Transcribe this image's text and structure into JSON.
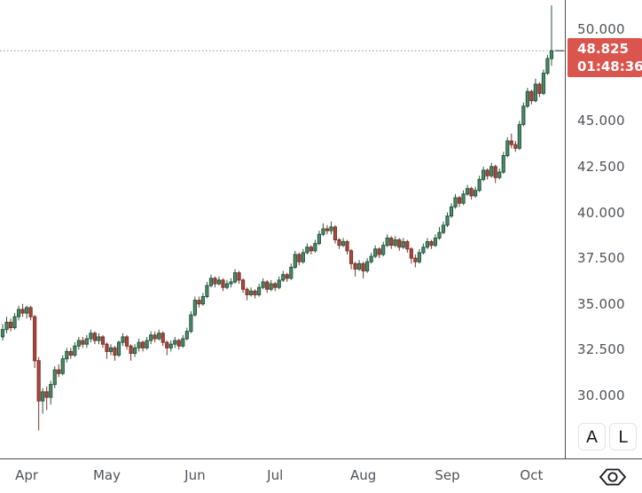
{
  "chart_data": {
    "type": "candlestick",
    "title": "",
    "grid": "off",
    "legend": "none",
    "x_axis": {
      "tick_labels": [
        "Apr",
        "May",
        "Jun",
        "Jul",
        "Aug",
        "Sep",
        "Oct"
      ],
      "tick_indices": [
        6,
        26,
        48,
        68,
        90,
        111,
        132
      ]
    },
    "y_axis": {
      "tick_labels": [
        "50.000",
        "45.000",
        "42.500",
        "40.000",
        "37.500",
        "35.000",
        "32.500",
        "30.000"
      ],
      "tick_values": [
        50,
        45,
        42.5,
        40,
        37.5,
        35,
        32.5,
        30
      ],
      "visible_range": [
        26.6,
        51.6
      ]
    },
    "current_price": 48.825,
    "countdown": "01:48:36",
    "candles": [
      [
        33.2,
        33.9,
        33.0,
        33.6
      ],
      [
        33.6,
        34.3,
        33.4,
        34.0
      ],
      [
        34.0,
        34.2,
        33.5,
        33.7
      ],
      [
        33.7,
        34.5,
        33.6,
        34.3
      ],
      [
        34.3,
        34.9,
        34.1,
        34.7
      ],
      [
        34.7,
        35.0,
        34.3,
        34.5
      ],
      [
        34.5,
        34.9,
        34.2,
        34.8
      ],
      [
        34.8,
        34.9,
        34.1,
        34.3
      ],
      [
        34.3,
        34.4,
        31.5,
        31.9
      ],
      [
        31.9,
        32.1,
        28.1,
        29.7
      ],
      [
        29.7,
        30.4,
        29.0,
        30.2
      ],
      [
        30.2,
        30.5,
        29.2,
        29.9
      ],
      [
        29.9,
        30.8,
        29.5,
        30.6
      ],
      [
        30.6,
        31.6,
        30.4,
        31.4
      ],
      [
        31.4,
        31.7,
        31.0,
        31.2
      ],
      [
        31.2,
        32.2,
        31.1,
        32.0
      ],
      [
        32.0,
        32.6,
        31.8,
        32.4
      ],
      [
        32.4,
        32.6,
        32.0,
        32.2
      ],
      [
        32.2,
        32.9,
        32.1,
        32.7
      ],
      [
        32.7,
        33.2,
        32.5,
        33.0
      ],
      [
        33.0,
        33.2,
        32.6,
        32.8
      ],
      [
        32.8,
        33.3,
        32.6,
        33.1
      ],
      [
        33.1,
        33.6,
        32.9,
        33.4
      ],
      [
        33.4,
        33.5,
        32.8,
        33.0
      ],
      [
        33.0,
        33.4,
        32.8,
        33.2
      ],
      [
        33.2,
        33.3,
        32.6,
        32.8
      ],
      [
        32.8,
        32.9,
        32.0,
        32.4
      ],
      [
        32.4,
        32.8,
        32.2,
        32.6
      ],
      [
        32.6,
        32.7,
        31.9,
        32.2
      ],
      [
        32.2,
        33.0,
        32.1,
        32.9
      ],
      [
        32.9,
        33.4,
        32.7,
        33.2
      ],
      [
        33.2,
        33.3,
        32.5,
        32.7
      ],
      [
        32.7,
        32.8,
        31.9,
        32.3
      ],
      [
        32.3,
        32.8,
        32.1,
        32.6
      ],
      [
        32.6,
        33.1,
        32.4,
        32.9
      ],
      [
        32.9,
        33.0,
        32.4,
        32.6
      ],
      [
        32.6,
        33.2,
        32.5,
        33.0
      ],
      [
        33.0,
        33.5,
        32.8,
        33.3
      ],
      [
        33.3,
        33.5,
        32.9,
        33.1
      ],
      [
        33.1,
        33.6,
        33.0,
        33.4
      ],
      [
        33.4,
        33.5,
        32.7,
        32.9
      ],
      [
        32.9,
        33.0,
        32.2,
        32.6
      ],
      [
        32.6,
        33.0,
        32.4,
        32.8
      ],
      [
        32.8,
        33.2,
        32.6,
        33.0
      ],
      [
        33.0,
        33.1,
        32.5,
        32.7
      ],
      [
        32.7,
        33.3,
        32.6,
        33.1
      ],
      [
        33.1,
        33.7,
        33.0,
        33.5
      ],
      [
        33.5,
        34.6,
        33.4,
        34.4
      ],
      [
        34.4,
        35.4,
        34.3,
        35.2
      ],
      [
        35.2,
        35.4,
        34.8,
        35.0
      ],
      [
        35.0,
        35.6,
        34.9,
        35.4
      ],
      [
        35.4,
        36.2,
        35.3,
        36.0
      ],
      [
        36.0,
        36.6,
        35.9,
        36.4
      ],
      [
        36.4,
        36.5,
        35.9,
        36.1
      ],
      [
        36.1,
        36.5,
        36.0,
        36.3
      ],
      [
        36.3,
        36.4,
        35.7,
        35.9
      ],
      [
        35.9,
        36.3,
        35.8,
        36.1
      ],
      [
        36.1,
        36.4,
        35.9,
        36.2
      ],
      [
        36.2,
        36.9,
        36.1,
        36.7
      ],
      [
        36.7,
        36.8,
        36.1,
        36.3
      ],
      [
        36.3,
        36.4,
        35.6,
        35.8
      ],
      [
        35.8,
        35.9,
        35.2,
        35.5
      ],
      [
        35.5,
        35.9,
        35.4,
        35.7
      ],
      [
        35.7,
        35.8,
        35.3,
        35.5
      ],
      [
        35.5,
        36.1,
        35.4,
        35.9
      ],
      [
        35.9,
        36.4,
        35.8,
        36.2
      ],
      [
        36.2,
        36.3,
        35.6,
        35.8
      ],
      [
        35.8,
        36.3,
        35.7,
        36.1
      ],
      [
        36.1,
        36.2,
        35.7,
        35.9
      ],
      [
        35.9,
        36.5,
        35.8,
        36.3
      ],
      [
        36.3,
        36.8,
        36.2,
        36.6
      ],
      [
        36.6,
        36.7,
        36.2,
        36.4
      ],
      [
        36.4,
        37.2,
        36.3,
        37.0
      ],
      [
        37.0,
        37.9,
        36.9,
        37.7
      ],
      [
        37.7,
        37.8,
        37.1,
        37.3
      ],
      [
        37.3,
        38.0,
        37.2,
        37.8
      ],
      [
        37.8,
        38.3,
        37.7,
        38.1
      ],
      [
        38.1,
        38.2,
        37.7,
        37.9
      ],
      [
        37.9,
        38.5,
        37.8,
        38.3
      ],
      [
        38.3,
        39.0,
        38.2,
        38.8
      ],
      [
        38.8,
        39.4,
        38.7,
        39.1
      ],
      [
        39.1,
        39.3,
        38.8,
        39.0
      ],
      [
        39.0,
        39.5,
        38.8,
        39.2
      ],
      [
        39.2,
        39.3,
        38.3,
        38.5
      ],
      [
        38.5,
        38.6,
        38.0,
        38.2
      ],
      [
        38.2,
        38.6,
        38.1,
        38.4
      ],
      [
        38.4,
        38.5,
        37.7,
        37.9
      ],
      [
        37.9,
        38.0,
        36.9,
        37.2
      ],
      [
        37.2,
        37.3,
        36.5,
        36.9
      ],
      [
        36.9,
        37.4,
        36.8,
        37.2
      ],
      [
        37.2,
        37.3,
        36.4,
        36.8
      ],
      [
        36.8,
        37.5,
        36.7,
        37.3
      ],
      [
        37.3,
        37.8,
        37.2,
        37.6
      ],
      [
        37.6,
        38.2,
        37.5,
        38.0
      ],
      [
        38.0,
        38.1,
        37.5,
        37.7
      ],
      [
        37.7,
        38.4,
        37.6,
        38.2
      ],
      [
        38.2,
        38.8,
        38.1,
        38.6
      ],
      [
        38.6,
        38.7,
        38.0,
        38.2
      ],
      [
        38.2,
        38.7,
        38.1,
        38.5
      ],
      [
        38.5,
        38.6,
        37.9,
        38.1
      ],
      [
        38.1,
        38.6,
        38.0,
        38.4
      ],
      [
        38.4,
        38.5,
        37.8,
        38.0
      ],
      [
        38.0,
        38.1,
        37.2,
        37.5
      ],
      [
        37.5,
        37.7,
        37.0,
        37.3
      ],
      [
        37.3,
        38.0,
        37.2,
        37.8
      ],
      [
        37.8,
        38.3,
        37.7,
        38.1
      ],
      [
        38.1,
        38.6,
        38.0,
        38.4
      ],
      [
        38.4,
        38.5,
        38.0,
        38.2
      ],
      [
        38.2,
        38.8,
        38.1,
        38.6
      ],
      [
        38.6,
        39.2,
        38.5,
        38.9
      ],
      [
        38.9,
        39.5,
        38.8,
        39.3
      ],
      [
        39.3,
        40.0,
        39.2,
        39.8
      ],
      [
        39.8,
        40.5,
        39.7,
        40.3
      ],
      [
        40.3,
        41.0,
        40.2,
        40.8
      ],
      [
        40.8,
        40.9,
        40.3,
        40.5
      ],
      [
        40.5,
        41.2,
        40.4,
        41.0
      ],
      [
        41.0,
        41.5,
        40.9,
        41.3
      ],
      [
        41.3,
        41.4,
        40.7,
        40.9
      ],
      [
        40.9,
        41.4,
        40.8,
        41.2
      ],
      [
        41.2,
        42.0,
        41.1,
        41.8
      ],
      [
        41.8,
        42.5,
        41.7,
        42.3
      ],
      [
        42.3,
        42.4,
        41.8,
        42.0
      ],
      [
        42.0,
        42.7,
        41.9,
        42.5
      ],
      [
        42.5,
        42.6,
        41.6,
        41.9
      ],
      [
        41.9,
        42.4,
        41.8,
        42.2
      ],
      [
        42.2,
        43.3,
        42.1,
        43.1
      ],
      [
        43.1,
        44.1,
        43.0,
        43.9
      ],
      [
        43.9,
        44.3,
        43.5,
        43.7
      ],
      [
        43.7,
        43.9,
        43.3,
        43.5
      ],
      [
        43.5,
        45.0,
        43.4,
        44.8
      ],
      [
        44.8,
        46.0,
        44.7,
        45.8
      ],
      [
        45.8,
        46.8,
        45.7,
        46.6
      ],
      [
        46.6,
        46.7,
        45.9,
        46.1
      ],
      [
        46.1,
        47.3,
        46.0,
        47.0
      ],
      [
        47.0,
        47.1,
        46.3,
        46.5
      ],
      [
        46.5,
        47.8,
        46.4,
        47.6
      ],
      [
        47.6,
        48.6,
        47.5,
        48.4
      ],
      [
        48.4,
        51.3,
        48.0,
        48.825
      ]
    ]
  },
  "price_label": {
    "price": "48.825",
    "countdown": "01:48:36"
  },
  "toolbar": {
    "auto_label": "A",
    "log_label": "L"
  },
  "colors": {
    "up_fill": "#4e8968",
    "up_border": "#26573f",
    "down_fill": "#a7483e",
    "down_border": "#7c332b",
    "label_bg": "#d9554d",
    "label_text": "#ffffff",
    "axis_text": "#51535a",
    "axis_line": "#4a4d55",
    "price_line": "#8c8f96"
  }
}
